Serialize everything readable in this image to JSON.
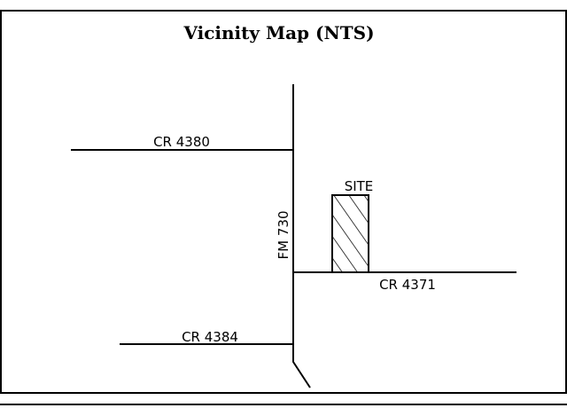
{
  "title": "Vicinity Map (NTS)",
  "roads": [
    {
      "label": "CR 4380"
    },
    {
      "label": "FM 730"
    },
    {
      "label": "CR 4371"
    },
    {
      "label": "CR 4384"
    }
  ],
  "site": {
    "label": "SITE"
  }
}
